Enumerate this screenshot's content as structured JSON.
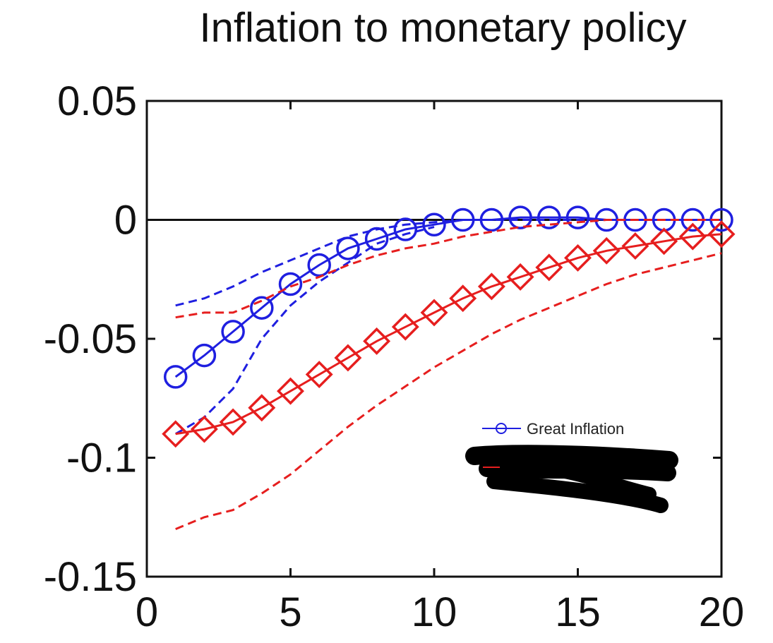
{
  "chart_data": {
    "type": "line",
    "title": "Inflation to monetary policy",
    "xlabel": "",
    "ylabel": "",
    "xlim": [
      0,
      20
    ],
    "ylim": [
      -0.15,
      0.05
    ],
    "x_ticks": [
      0,
      5,
      10,
      15,
      20
    ],
    "x_tick_labels": [
      "0",
      "5",
      "10",
      "15",
      "20"
    ],
    "y_ticks": [
      0.05,
      0,
      -0.05,
      -0.1,
      -0.15
    ],
    "y_tick_labels": [
      "0.05",
      "0",
      "-0.05",
      "-0.1",
      "-0.15"
    ],
    "grid": false,
    "legend_placement": "bottom-right",
    "zero_line": true,
    "x": [
      1,
      2,
      3,
      4,
      5,
      6,
      7,
      8,
      9,
      10,
      11,
      12,
      13,
      14,
      15,
      16,
      17,
      18,
      19,
      20
    ],
    "series": [
      {
        "name": "Great Inflation",
        "color": "#1f1fe0",
        "marker": "circle",
        "values": [
          -0.066,
          -0.057,
          -0.047,
          -0.037,
          -0.027,
          -0.019,
          -0.012,
          -0.008,
          -0.004,
          -0.002,
          0.0,
          0.0,
          0.001,
          0.001,
          0.001,
          0.0,
          0.0,
          0.0,
          0.0,
          0.0
        ],
        "upper": [
          -0.036,
          -0.033,
          -0.028,
          -0.022,
          -0.017,
          -0.012,
          -0.007,
          -0.004,
          -0.002,
          -0.001,
          0.0,
          0.0,
          0.0,
          0.0,
          0.0,
          0.0,
          0.0,
          0.0,
          0.0,
          0.0
        ],
        "lower": [
          -0.09,
          -0.083,
          -0.071,
          -0.05,
          -0.036,
          -0.026,
          -0.018,
          -0.01,
          -0.006,
          -0.003,
          null,
          null,
          null,
          null,
          null,
          null,
          null,
          null,
          null,
          null
        ]
      },
      {
        "name": "",
        "color": "#e61e1e",
        "marker": "diamond",
        "values": [
          -0.09,
          -0.088,
          -0.085,
          -0.079,
          -0.072,
          -0.065,
          -0.058,
          -0.051,
          -0.045,
          -0.039,
          -0.033,
          -0.028,
          -0.024,
          -0.02,
          -0.016,
          -0.013,
          -0.011,
          -0.009,
          -0.007,
          -0.006
        ],
        "upper": [
          -0.041,
          -0.039,
          -0.039,
          -0.034,
          -0.028,
          -0.024,
          -0.019,
          -0.015,
          -0.012,
          -0.01,
          -0.007,
          -0.005,
          -0.003,
          -0.002,
          -0.001,
          0.0,
          0.0,
          0.0,
          0.0,
          0.0
        ],
        "lower": [
          -0.13,
          -0.125,
          -0.122,
          -0.115,
          -0.107,
          -0.097,
          -0.087,
          -0.078,
          -0.07,
          -0.062,
          -0.055,
          -0.048,
          -0.042,
          -0.037,
          -0.032,
          -0.027,
          -0.023,
          -0.02,
          -0.017,
          -0.014
        ]
      }
    ]
  }
}
